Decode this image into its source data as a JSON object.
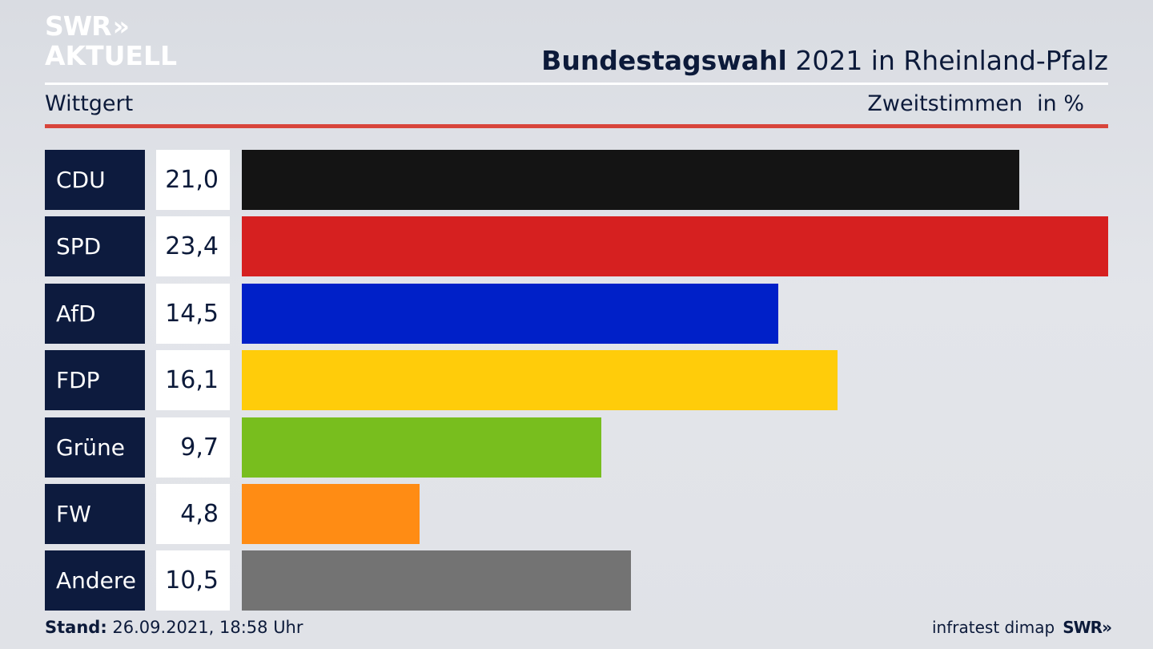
{
  "brand": {
    "logo_line1": "SWR",
    "logo_arrows": "»",
    "logo_line2": "AKTUELL"
  },
  "header": {
    "title_bold": "Bundestagswahl",
    "title_rest": "2021 in Rheinland-Pfalz",
    "location": "Wittgert",
    "measure": "Zweitstimmen",
    "unit": "in %"
  },
  "chart_data": {
    "type": "bar",
    "orientation": "horizontal",
    "categories": [
      "CDU",
      "SPD",
      "AfD",
      "FDP",
      "Grüne",
      "FW",
      "Andere"
    ],
    "values": [
      21.0,
      23.4,
      14.5,
      16.1,
      9.7,
      4.8,
      10.5
    ],
    "value_labels": [
      "21,0",
      "23,4",
      "14,5",
      "16,1",
      "9,7",
      "4,8",
      "10,5"
    ],
    "colors": [
      "#141414",
      "#d62020",
      "#0020c8",
      "#ffcc0a",
      "#78be1e",
      "#ff8c14",
      "#737373"
    ],
    "xlim": [
      0,
      23.4
    ],
    "grid": false,
    "legend": "none"
  },
  "footer": {
    "stand_label": "Stand:",
    "stand_value": "26.09.2021, 18:58 Uhr",
    "source": "infratest dimap",
    "swr_mark": "SWR",
    "swr_arrows": "»"
  }
}
